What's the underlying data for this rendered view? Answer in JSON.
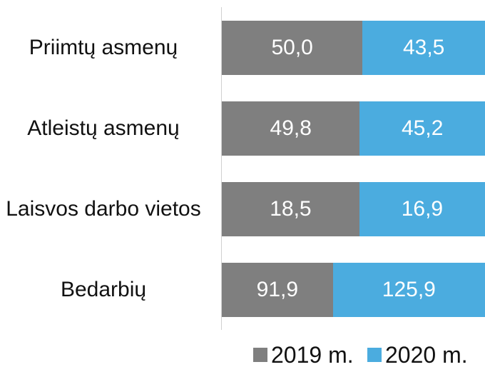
{
  "chart_data": {
    "type": "bar",
    "orientation": "horizontal",
    "stacked": "percent",
    "categories": [
      "Priimtų asmenų",
      "Atleistų asmenų",
      "Laisvos darbo vietos",
      "Bedarbių"
    ],
    "series": [
      {
        "name": "2019 m.",
        "color": "#7f7f7f",
        "values": [
          50.0,
          49.8,
          18.5,
          91.9
        ],
        "value_labels": [
          "50,0",
          "49,8",
          "18,5",
          "91,9"
        ]
      },
      {
        "name": "2020 m.",
        "color": "#4bacdf",
        "values": [
          43.5,
          45.2,
          16.9,
          125.9
        ],
        "value_labels": [
          "43,5",
          "45,2",
          "16,9",
          "125,9"
        ]
      }
    ],
    "legend": "bottom"
  }
}
